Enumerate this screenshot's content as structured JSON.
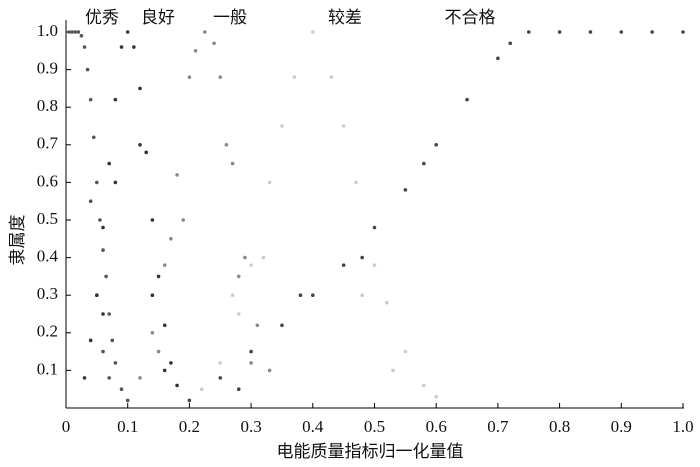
{
  "chart_data": {
    "type": "scatter",
    "x_label": "电能质量指标归一化量值",
    "y_label": "隶属度",
    "xlim": [
      0,
      1
    ],
    "ylim": [
      0,
      1
    ],
    "xticks": [
      0,
      0.1,
      0.2,
      0.3,
      0.4,
      0.5,
      0.6,
      0.7,
      0.8,
      0.9,
      {
        "value": 1,
        "label": "1.0"
      }
    ],
    "yticks": [
      0.1,
      0.2,
      0.3,
      0.4,
      0.5,
      0.6,
      0.7,
      0.8,
      0.9,
      {
        "value": 1,
        "label": "1.0"
      }
    ],
    "series": [
      {
        "name": "优秀",
        "color": "#555555",
        "x": [
          0.005,
          0.01,
          0.015,
          0.02,
          0.025,
          0.03,
          0.035,
          0.04,
          0.045,
          0.05,
          0.055,
          0.06,
          0.065,
          0.07,
          0.075,
          0.08,
          0.09,
          0.1,
          0.04,
          0.05,
          0.06,
          0.07
        ],
        "values": [
          1,
          1,
          1,
          1,
          0.99,
          0.96,
          0.9,
          0.82,
          0.72,
          0.6,
          0.5,
          0.42,
          0.35,
          0.25,
          0.18,
          0.12,
          0.05,
          0.02,
          0.55,
          0.3,
          0.15,
          0.08
        ]
      },
      {
        "name": "良好",
        "color": "#333333",
        "x": [
          0.03,
          0.04,
          0.05,
          0.06,
          0.07,
          0.08,
          0.09,
          0.1,
          0.11,
          0.12,
          0.13,
          0.14,
          0.15,
          0.16,
          0.17,
          0.18,
          0.06,
          0.08,
          0.12,
          0.14,
          0.16
        ],
        "values": [
          0.08,
          0.18,
          0.3,
          0.48,
          0.65,
          0.82,
          0.96,
          1,
          0.96,
          0.85,
          0.68,
          0.5,
          0.35,
          0.22,
          0.12,
          0.06,
          0.25,
          0.6,
          0.7,
          0.3,
          0.1
        ]
      },
      {
        "name": "一般",
        "color": "#888888",
        "x": [
          0.12,
          0.14,
          0.16,
          0.18,
          0.2,
          0.21,
          0.225,
          0.24,
          0.25,
          0.27,
          0.29,
          0.31,
          0.33,
          0.15,
          0.17,
          0.19,
          0.26,
          0.28,
          0.3
        ],
        "values": [
          0.08,
          0.2,
          0.38,
          0.62,
          0.88,
          0.95,
          1,
          0.97,
          0.88,
          0.65,
          0.4,
          0.22,
          0.1,
          0.15,
          0.45,
          0.5,
          0.7,
          0.35,
          0.12
        ]
      },
      {
        "name": "较差",
        "color": "#cccccc",
        "x": [
          0.22,
          0.25,
          0.28,
          0.3,
          0.33,
          0.35,
          0.37,
          0.4,
          0.43,
          0.45,
          0.47,
          0.5,
          0.52,
          0.55,
          0.58,
          0.27,
          0.32,
          0.48,
          0.53,
          0.6
        ],
        "values": [
          0.05,
          0.12,
          0.25,
          0.38,
          0.6,
          0.75,
          0.88,
          1,
          0.88,
          0.75,
          0.6,
          0.38,
          0.28,
          0.15,
          0.06,
          0.3,
          0.4,
          0.3,
          0.1,
          0.03
        ]
      },
      {
        "name": "不合格",
        "color": "#444444",
        "x": [
          0.2,
          0.25,
          0.3,
          0.35,
          0.4,
          0.45,
          0.5,
          0.55,
          0.6,
          0.65,
          0.7,
          0.72,
          0.75,
          0.8,
          0.85,
          0.9,
          0.95,
          1,
          0.28,
          0.38,
          0.48,
          0.58
        ],
        "values": [
          0.02,
          0.08,
          0.15,
          0.22,
          0.3,
          0.38,
          0.48,
          0.58,
          0.7,
          0.82,
          0.93,
          0.97,
          1,
          1,
          1,
          1,
          1,
          1,
          0.05,
          0.3,
          0.4,
          0.65
        ]
      }
    ]
  }
}
